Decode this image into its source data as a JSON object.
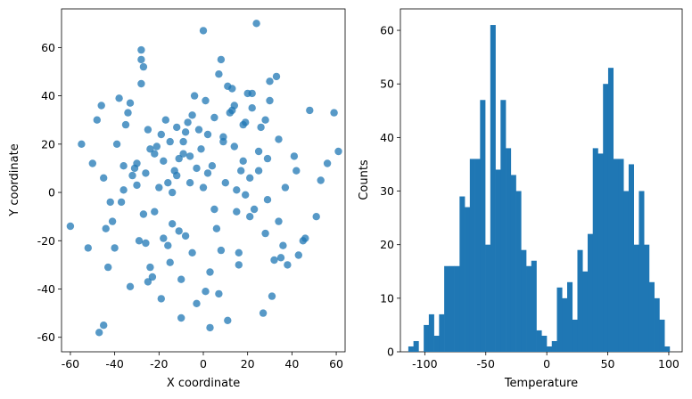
{
  "chart_data": [
    {
      "type": "scatter",
      "title": "",
      "xlabel": "X coordinate",
      "ylabel": "Y coordinate",
      "xlim": [
        -64,
        64
      ],
      "ylim": [
        -66,
        76
      ],
      "xticks": [
        -60,
        -40,
        -20,
        0,
        20,
        40,
        60
      ],
      "yticks": [
        -60,
        -40,
        -20,
        0,
        20,
        40,
        60
      ],
      "point_color": "#1f77b4",
      "point_alpha": 0.75,
      "grid": false,
      "distribution_note_skipped": true,
      "points": {
        "x": [
          -60,
          -47,
          -46,
          -45,
          -41,
          -37,
          -36,
          -34,
          -30,
          -29,
          -28,
          -28,
          -28,
          -27,
          -26,
          -25,
          -24,
          -23,
          -22,
          -21,
          -20,
          -19,
          -18,
          -17,
          -16,
          -15,
          -14,
          -13,
          -12,
          -11,
          -10,
          -9,
          -8,
          -7,
          -6,
          -5,
          -4,
          -3,
          -2,
          -1,
          0,
          1,
          2,
          3,
          4,
          5,
          6,
          7,
          8,
          9,
          10,
          11,
          12,
          13,
          14,
          15,
          16,
          17,
          18,
          19,
          20,
          21,
          22,
          23,
          24,
          25,
          26,
          27,
          28,
          30,
          32,
          33,
          34,
          36,
          38,
          41,
          43,
          46,
          48,
          51,
          53,
          56,
          59,
          61,
          -55,
          -52,
          -50,
          -48,
          -44,
          -42,
          -39,
          -33,
          -31,
          -18,
          -12,
          -6,
          1,
          7,
          14,
          21,
          28,
          35,
          42,
          -38,
          -35,
          -32,
          -26,
          -22,
          -16,
          -11,
          -5,
          3,
          9,
          15,
          22,
          29,
          -43,
          -40,
          -36,
          -30,
          -25,
          -19,
          -14,
          -9,
          -3,
          2,
          8,
          13,
          19,
          25,
          31,
          37,
          -45,
          -27,
          -8,
          11,
          29,
          45,
          -24,
          -10,
          5,
          18,
          34,
          -33,
          -15,
          0,
          16,
          30
        ],
        "y": [
          -14,
          -58,
          36,
          6,
          -12,
          -4,
          1,
          33,
          12,
          -20,
          45,
          55,
          59,
          52,
          8,
          26,
          -31,
          -35,
          16,
          19,
          2,
          -44,
          13,
          30,
          -22,
          -29,
          0,
          9,
          7,
          14,
          -36,
          21,
          -18,
          29,
          15,
          -25,
          40,
          10,
          26,
          18,
          67,
          38,
          24,
          -33,
          11,
          31,
          -15,
          -42,
          55,
          21,
          4,
          -53,
          33,
          43,
          19,
          1,
          -25,
          9,
          13,
          29,
          41,
          6,
          35,
          -7,
          70,
          9,
          27,
          -50,
          -17,
          38,
          -28,
          48,
          22,
          -22,
          -30,
          15,
          -26,
          -19,
          34,
          -10,
          5,
          12,
          33,
          17,
          20,
          -23,
          12,
          30,
          -15,
          -4,
          20,
          -39,
          10,
          -19,
          27,
          4,
          -41,
          49,
          36,
          -10,
          30,
          -27,
          9,
          39,
          28,
          7,
          -21,
          -8,
          4,
          -16,
          32,
          -56,
          23,
          -8,
          41,
          -3,
          -31,
          -23,
          11,
          3,
          -37,
          24,
          -13,
          16,
          -46,
          8,
          -24,
          34,
          -1,
          17,
          -43,
          2,
          -55,
          -9,
          25,
          44,
          14,
          -20,
          18,
          -52,
          -7,
          28,
          -12,
          37,
          21,
          2,
          -30,
          46
        ]
      }
    },
    {
      "type": "bar",
      "title": "",
      "xlabel": "Temperature",
      "ylabel": "Counts",
      "xlim": [
        -120,
        111
      ],
      "ylim": [
        0,
        64
      ],
      "xticks": [
        -100,
        -50,
        0,
        50,
        100
      ],
      "yticks": [
        0,
        10,
        20,
        30,
        40,
        50,
        60
      ],
      "bar_color": "#1f77b4",
      "grid": false,
      "bin_start": -113.5,
      "bin_width": 4.2,
      "counts": [
        1,
        2,
        0,
        5,
        7,
        3,
        7,
        16,
        16,
        16,
        29,
        27,
        36,
        36,
        47,
        20,
        61,
        34,
        47,
        38,
        33,
        30,
        19,
        16,
        17,
        4,
        3,
        1,
        2,
        12,
        10,
        13,
        6,
        19,
        15,
        22,
        38,
        37,
        50,
        53,
        36,
        36,
        30,
        35,
        20,
        30,
        20,
        13,
        10,
        6,
        1
      ]
    }
  ]
}
